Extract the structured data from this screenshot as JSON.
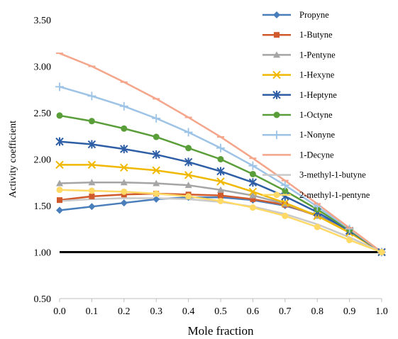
{
  "chart_data": {
    "type": "line",
    "title": "",
    "xlabel": "Mole fraction",
    "ylabel": "Activity coefficient",
    "xlim": [
      0,
      1
    ],
    "ylim": [
      0.5,
      3.5
    ],
    "x_ticks": [
      "0.0",
      "0.1",
      "0.2",
      "0.3",
      "0.4",
      "0.5",
      "0.6",
      "0.7",
      "0.8",
      "0.9",
      "1.0"
    ],
    "y_ticks": [
      "0.50",
      "1.00",
      "1.50",
      "2.00",
      "2.50",
      "3.00",
      "3.50"
    ],
    "grid": false,
    "legend_position": "top-right",
    "reference_line": {
      "y": 1.0,
      "color": "#000000"
    },
    "x": [
      0,
      0.1,
      0.2,
      0.3,
      0.4,
      0.5,
      0.6,
      0.7,
      0.8,
      0.9,
      1.0
    ],
    "series": [
      {
        "name": "Propyne",
        "color": "#4a7ebb",
        "marker": "diamond",
        "values": [
          1.45,
          1.49,
          1.53,
          1.57,
          1.59,
          1.59,
          1.56,
          1.5,
          1.4,
          1.23,
          1.0
        ]
      },
      {
        "name": "1-Butyne",
        "color": "#d05a2c",
        "marker": "square",
        "values": [
          1.56,
          1.6,
          1.62,
          1.63,
          1.62,
          1.61,
          1.57,
          1.51,
          1.39,
          1.22,
          1.0
        ]
      },
      {
        "name": "1-Pentyne",
        "color": "#a5a5a5",
        "marker": "triangle",
        "values": [
          1.74,
          1.75,
          1.75,
          1.74,
          1.72,
          1.67,
          1.61,
          1.52,
          1.39,
          1.22,
          1.0
        ]
      },
      {
        "name": "1-Hexyne",
        "color": "#f0b800",
        "marker": "x",
        "values": [
          1.94,
          1.94,
          1.91,
          1.88,
          1.83,
          1.76,
          1.65,
          1.53,
          1.39,
          1.21,
          1.0
        ]
      },
      {
        "name": "1-Heptyne",
        "color": "#2e5ea6",
        "marker": "star",
        "values": [
          2.19,
          2.16,
          2.11,
          2.05,
          1.97,
          1.87,
          1.75,
          1.6,
          1.43,
          1.23,
          1.0
        ]
      },
      {
        "name": "1-Octyne",
        "color": "#5a9e3a",
        "marker": "circle",
        "values": [
          2.47,
          2.41,
          2.33,
          2.24,
          2.12,
          2.0,
          1.84,
          1.66,
          1.46,
          1.24,
          1.0
        ]
      },
      {
        "name": "1-Nonyne",
        "color": "#9dc3e6",
        "marker": "plus",
        "values": [
          2.78,
          2.68,
          2.57,
          2.44,
          2.29,
          2.12,
          1.93,
          1.72,
          1.49,
          1.25,
          1.0
        ]
      },
      {
        "name": "1-Decyne",
        "color": "#f4a58a",
        "marker": "dash",
        "values": [
          3.14,
          3.0,
          2.83,
          2.65,
          2.45,
          2.24,
          2.01,
          1.77,
          1.52,
          1.26,
          1.0
        ]
      },
      {
        "name": "3-methyl-1-butyne",
        "color": "#c9c9c9",
        "marker": "none",
        "values": [
          1.55,
          1.57,
          1.58,
          1.58,
          1.57,
          1.54,
          1.49,
          1.41,
          1.3,
          1.16,
          1.0
        ]
      },
      {
        "name": "2-methyl-1-pentyne",
        "color": "#ffd966",
        "marker": "circle",
        "values": [
          1.67,
          1.66,
          1.65,
          1.63,
          1.6,
          1.55,
          1.48,
          1.39,
          1.27,
          1.13,
          1.0
        ]
      }
    ]
  }
}
